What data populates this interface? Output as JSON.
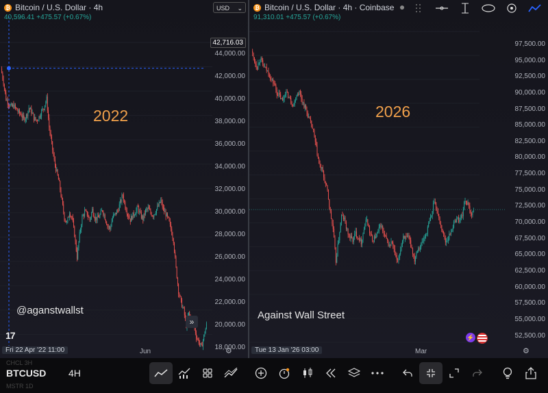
{
  "left": {
    "title": "Bitcoin / U.S. Dollar · 4h",
    "subprice": "40,596.41  +475.57 (+0.67%)",
    "currency": "USD",
    "crosshair_price": "42,716.03",
    "year_label": "2022",
    "handle": "@aganstwallst",
    "date_pill": "Fri 22 Apr '22   11:00",
    "month_label": "Jun",
    "axis_ticks": [
      "44,000.00",
      "42,000.00",
      "40,000.00",
      "38,000.00",
      "36,000.00",
      "34,000.00",
      "32,000.00",
      "30,000.00",
      "28,000.00",
      "26,000.00",
      "24,000.00",
      "22,000.00",
      "20,000.00",
      "18,000.00"
    ],
    "chevron": "»",
    "logo": "17"
  },
  "right": {
    "title": "Bitcoin / U.S. Dollar · 4h · Coinbase",
    "subprice": "91,310.01  +475.57 (+0.67%)",
    "year_label": "2026",
    "handle": "Against Wall Street",
    "date_pill": "Tue 13 Jan '26   03:00",
    "month_label": "Mar",
    "axis_ticks": [
      "97,500.00",
      "95,000.00",
      "92,500.00",
      "90,000.00",
      "87,500.00",
      "85,000.00",
      "82,500.00",
      "80,000.00",
      "77,500.00",
      "75,000.00",
      "72,500.00",
      "70,000.00",
      "67,500.00",
      "65,000.00",
      "62,500.00",
      "60,000.00",
      "57,500.00",
      "55,000.00",
      "52,500.00"
    ]
  },
  "bottom_bar": {
    "symbol": "BTCUSD",
    "interval": "4H",
    "ghost_1": "CHCL    3H",
    "ghost_2": "MSTR    1D",
    "icons": [
      "trend-line-tool-icon",
      "indicators-icon",
      "layout-grid-icon",
      "drawing-brush-icon",
      "add-icon",
      "alert-clock-icon",
      "candles-icon",
      "replay-icon",
      "layers-icon",
      "more-icon",
      "undo-icon",
      "collapse-icon",
      "expand-icon",
      "redo-icon",
      "idea-bulb-icon",
      "share-icon"
    ]
  },
  "colors": {
    "up": "#26a69a",
    "down": "#ef5350",
    "year": "#f0a04b",
    "crosshair": "#2962ff"
  },
  "chart_data": [
    {
      "type": "candlestick",
      "title": "Bitcoin / U.S. Dollar · 4h",
      "ylim": [
        17000,
        45000
      ],
      "x_start": "2022-04-22",
      "path_points": [
        42700,
        41500,
        40000,
        39600,
        39300,
        39400,
        39100,
        38800,
        38600,
        38200,
        38500,
        39200,
        38900,
        38300,
        38100,
        38400,
        38900,
        39300,
        40000,
        37500,
        36000,
        34500,
        33500,
        32500,
        31000,
        29500,
        29000,
        30000,
        29500,
        28000,
        26000,
        28000,
        29500,
        30000,
        29800,
        29300,
        30200,
        29500,
        29400,
        29700,
        30200,
        29500,
        28800,
        28500,
        29500,
        29800,
        30100,
        30800,
        31500,
        30500,
        29800,
        29300,
        29700,
        30000,
        30400,
        29700,
        29400,
        30100,
        30300,
        29900,
        29700,
        30100,
        30500,
        31000,
        30200,
        29800,
        29300,
        28500,
        27500,
        25000,
        23000,
        22000,
        21300,
        20000,
        21000,
        20400,
        20100,
        19000,
        18500,
        18000,
        19000,
        20000
      ],
      "crosshair_price": 42716.03,
      "x_labels": [
        "Jun"
      ]
    },
    {
      "type": "candlestick",
      "title": "Bitcoin / U.S. Dollar · 4h · Coinbase",
      "ylim": [
        51500,
        99500
      ],
      "x_start": "2026-01-13",
      "path_points": [
        96500,
        95000,
        94000,
        95500,
        94300,
        93700,
        93200,
        92000,
        91500,
        90000,
        89500,
        88700,
        90200,
        89600,
        88700,
        88200,
        89800,
        90200,
        88800,
        87800,
        86600,
        85300,
        84000,
        81500,
        79000,
        78200,
        76500,
        74800,
        71500,
        69000,
        64000,
        67500,
        71000,
        70500,
        68700,
        67700,
        67300,
        68400,
        67700,
        67000,
        69000,
        70600,
        68500,
        67200,
        67800,
        68500,
        69700,
        68200,
        67300,
        66400,
        67000,
        65000,
        63800,
        66000,
        68000,
        67500,
        67600,
        66000,
        64300,
        66000,
        66300,
        67200,
        68100,
        69700,
        71000,
        73600,
        71800,
        70000,
        68600,
        67100,
        67600,
        68700,
        69800,
        70700,
        70300,
        71300,
        73600,
        72700,
        71300,
        71800
      ],
      "last_price_level": 72000,
      "x_labels": [
        "Mar"
      ]
    }
  ]
}
